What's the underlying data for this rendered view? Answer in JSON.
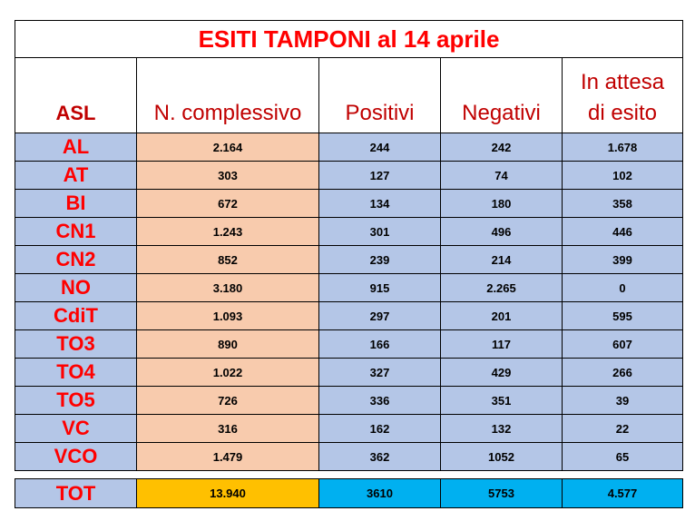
{
  "title": "ESITI TAMPONI al 14 aprile",
  "headers": {
    "asl": "ASL",
    "total": "N. complessivo",
    "positive": "Positivi",
    "negative": "Negativi",
    "pending_line1": "In attesa",
    "pending_line2": "di esito"
  },
  "rows": [
    {
      "asl": "AL",
      "total": "2.164",
      "positive": "244",
      "negative": "242",
      "pending": "1.678"
    },
    {
      "asl": "AT",
      "total": "303",
      "positive": "127",
      "negative": "74",
      "pending": "102"
    },
    {
      "asl": "BI",
      "total": "672",
      "positive": "134",
      "negative": "180",
      "pending": "358"
    },
    {
      "asl": "CN1",
      "total": "1.243",
      "positive": "301",
      "negative": "496",
      "pending": "446"
    },
    {
      "asl": "CN2",
      "total": "852",
      "positive": "239",
      "negative": "214",
      "pending": "399"
    },
    {
      "asl": "NO",
      "total": "3.180",
      "positive": "915",
      "negative": "2.265",
      "pending": "0"
    },
    {
      "asl": "CdiT",
      "total": "1.093",
      "positive": "297",
      "negative": "201",
      "pending": "595"
    },
    {
      "asl": "TO3",
      "total": "890",
      "positive": "166",
      "negative": "117",
      "pending": "607"
    },
    {
      "asl": "TO4",
      "total": "1.022",
      "positive": "327",
      "negative": "429",
      "pending": "266"
    },
    {
      "asl": "TO5",
      "total": "726",
      "positive": "336",
      "negative": "351",
      "pending": "39"
    },
    {
      "asl": "VC",
      "total": "316",
      "positive": "162",
      "negative": "132",
      "pending": "22"
    },
    {
      "asl": "VCO",
      "total": "1.479",
      "positive": "362",
      "negative": "1052",
      "pending": "65"
    }
  ],
  "totals": {
    "asl": "TOT",
    "total": "13.940",
    "positive": "3610",
    "negative": "5753",
    "pending": "4.577"
  },
  "colors": {
    "title_red": "#ff0000",
    "header_red": "#c00000",
    "peach": "#f8cbad",
    "light_blue": "#b4c6e7",
    "gold": "#ffc000",
    "sky_blue": "#00b0f0"
  }
}
